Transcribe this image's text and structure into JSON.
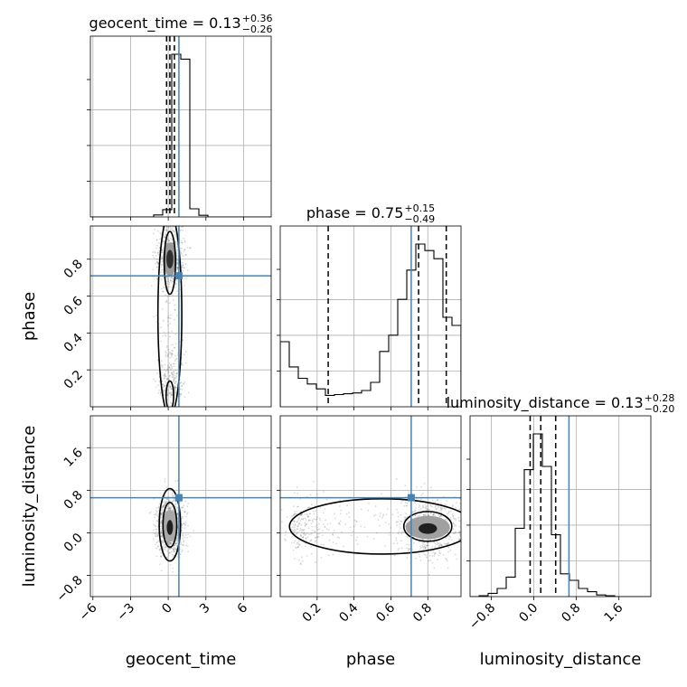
{
  "chart_data": {
    "type": "scatter",
    "parameters": [
      "geocent_time",
      "phase",
      "luminosity_distance"
    ],
    "titles": [
      {
        "name": "geocent_time",
        "median": "0.13",
        "plus": "+0.36",
        "minus": "−0.26"
      },
      {
        "name": "phase",
        "median": "0.75",
        "plus": "+0.15",
        "minus": "−0.49"
      },
      {
        "name": "luminosity_distance",
        "median": "0.13",
        "plus": "+0.28",
        "minus": "−0.20"
      }
    ],
    "ranges": {
      "geocent_time": [
        -6.2,
        8.2
      ],
      "phase": [
        0.0,
        0.98
      ],
      "luminosity_distance": [
        -1.2,
        2.2
      ]
    },
    "ticks": {
      "geocent_time": {
        "values": [
          -6,
          -3,
          0,
          3,
          6
        ],
        "labels": [
          "−6",
          "−3",
          "0",
          "3",
          "6"
        ]
      },
      "phase": {
        "values": [
          0.2,
          0.4,
          0.6,
          0.8
        ],
        "labels": [
          "0.2",
          "0.4",
          "0.6",
          "0.8"
        ]
      },
      "luminosity_distance": {
        "values": [
          -0.8,
          0.0,
          0.8,
          1.6
        ],
        "labels": [
          "−0.8",
          "0.0",
          "0.8",
          "1.6"
        ]
      }
    },
    "truths": {
      "geocent_time": 0.85,
      "phase": 0.71,
      "luminosity_distance": 0.66
    },
    "quantiles": {
      "geocent_time": [
        -0.13,
        0.13,
        0.49
      ],
      "phase": [
        0.26,
        0.75,
        0.9
      ],
      "luminosity_distance": [
        -0.07,
        0.13,
        0.41
      ]
    },
    "histograms": {
      "geocent_time": {
        "edges": [
          -6.2,
          -5.48,
          -4.76,
          -4.04,
          -3.32,
          -2.6,
          -1.88,
          -1.16,
          -0.44,
          0.28,
          1.0,
          1.72,
          2.44,
          3.16,
          3.88,
          4.6,
          5.32,
          6.04,
          6.76,
          7.48,
          8.2
        ],
        "counts": [
          0,
          0,
          0,
          0,
          0,
          0,
          0,
          0.012,
          0.045,
          1.0,
          0.97,
          0.05,
          0.01,
          0,
          0,
          0,
          0,
          0,
          0,
          0
        ]
      },
      "phase": {
        "edges": [
          0.0,
          0.049,
          0.098,
          0.147,
          0.196,
          0.245,
          0.294,
          0.343,
          0.392,
          0.441,
          0.49,
          0.539,
          0.588,
          0.637,
          0.686,
          0.735,
          0.784,
          0.833,
          0.882,
          0.931,
          0.98
        ],
        "counts": [
          0.4,
          0.245,
          0.175,
          0.14,
          0.11,
          0.07,
          0.075,
          0.08,
          0.085,
          0.1,
          0.15,
          0.34,
          0.44,
          0.66,
          0.84,
          1.0,
          0.96,
          0.91,
          0.55,
          0.5
        ]
      },
      "luminosity_distance": {
        "edges": [
          -1.2,
          -1.03,
          -0.86,
          -0.69,
          -0.52,
          -0.35,
          -0.18,
          -0.01,
          0.16,
          0.33,
          0.5,
          0.67,
          0.84,
          1.01,
          1.18,
          1.35,
          1.52,
          1.69,
          1.86,
          2.03,
          2.2
        ],
        "counts": [
          0,
          0.005,
          0.02,
          0.05,
          0.12,
          0.42,
          0.78,
          1.0,
          0.8,
          0.38,
          0.14,
          0.1,
          0.05,
          0.03,
          0.01,
          0.005,
          0,
          0,
          0,
          0
        ]
      }
    },
    "pair_panels": [
      {
        "x": "geocent_time",
        "y": "phase"
      },
      {
        "x": "geocent_time",
        "y": "luminosity_distance"
      },
      {
        "x": "phase",
        "y": "luminosity_distance"
      }
    ],
    "xlabel": [
      "geocent_time",
      "phase",
      "luminosity_distance"
    ],
    "ylabel": [
      "phase",
      "luminosity_distance"
    ],
    "grid": true,
    "colors": {
      "truth": "#4682b4",
      "hist": "#000000",
      "contour": "#000000",
      "density": "#808080"
    }
  }
}
